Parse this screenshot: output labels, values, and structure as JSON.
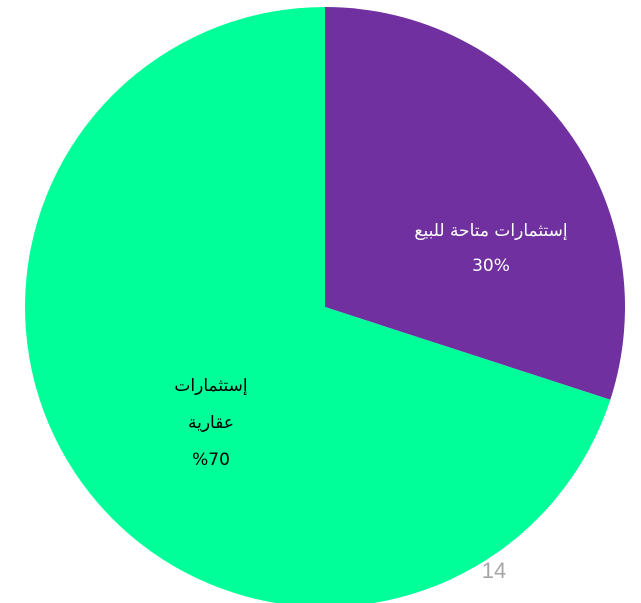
{
  "chart_data": {
    "type": "pie",
    "start_angle_deg": 0,
    "direction": "clockwise",
    "slices": [
      {
        "label_lines": [
          "إستثمارات متاحة للبيع",
          "30%"
        ],
        "value": 30,
        "color": "#7030a0",
        "label_color": "#ffffff"
      },
      {
        "label_lines": [
          "إستثمارات",
          "عقارية",
          "%70"
        ],
        "value": 70,
        "color": "#00ff99",
        "label_color": "#000000"
      }
    ],
    "legend": "none"
  },
  "page_number": "14"
}
